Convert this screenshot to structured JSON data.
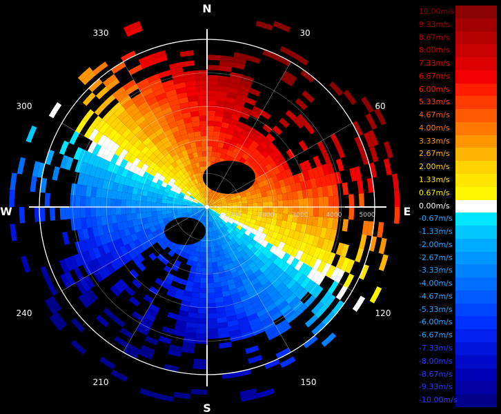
{
  "compass": {
    "north": "N",
    "south": "S",
    "east": "E",
    "west": "W"
  },
  "azimuth_labels": [
    "30",
    "60",
    "120",
    "150",
    "210",
    "240",
    "300",
    "330"
  ],
  "range_labels": [
    "1000",
    "2000",
    "3000",
    "4000",
    "5000"
  ],
  "legend": {
    "entries": [
      {
        "label": "10.00m/s",
        "color": "#8b0000"
      },
      {
        "label": "9.33m/s",
        "color": "#a00000"
      },
      {
        "label": "8.67m/s",
        "color": "#b40000"
      },
      {
        "label": "8.00m/s",
        "color": "#c80000"
      },
      {
        "label": "7.33m/s",
        "color": "#dc0000"
      },
      {
        "label": "6.67m/s",
        "color": "#f00000"
      },
      {
        "label": "6.00m/s",
        "color": "#ff1e00"
      },
      {
        "label": "5.33m/s",
        "color": "#ff3c00"
      },
      {
        "label": "4.67m/s",
        "color": "#ff5a00"
      },
      {
        "label": "4.00m/s",
        "color": "#ff7800"
      },
      {
        "label": "3.33m/s",
        "color": "#ff9600"
      },
      {
        "label": "2.67m/s",
        "color": "#ffb400"
      },
      {
        "label": "2.00m/s",
        "color": "#ffd200"
      },
      {
        "label": "1.33m/s",
        "color": "#ffe600"
      },
      {
        "label": "0.67m/s",
        "color": "#fff500"
      },
      {
        "label": "0.00m/s",
        "color": "#ffffff"
      },
      {
        "label": "-0.67m/s",
        "color": "#00e6ff"
      },
      {
        "label": "-1.33m/s",
        "color": "#00c8ff"
      },
      {
        "label": "-2.00m/s",
        "color": "#00aaff"
      },
      {
        "label": "-2.67m/s",
        "color": "#0096ff"
      },
      {
        "label": "-3.33m/s",
        "color": "#0082ff"
      },
      {
        "label": "-4.00m/s",
        "color": "#006eff"
      },
      {
        "label": "-4.67m/s",
        "color": "#005aff"
      },
      {
        "label": "-5.33m/s",
        "color": "#0046ff"
      },
      {
        "label": "-6.00m/s",
        "color": "#0032ff"
      },
      {
        "label": "-6.67m/s",
        "color": "#0020f0"
      },
      {
        "label": "-7.33m/s",
        "color": "#0014dc"
      },
      {
        "label": "-8.00m/s",
        "color": "#000ac8"
      },
      {
        "label": "-8.67m/s",
        "color": "#0000b4"
      },
      {
        "label": "-9.33m/s",
        "color": "#0000a0"
      },
      {
        "label": "-10.00m/s",
        "color": "#00008b"
      }
    ]
  }
}
